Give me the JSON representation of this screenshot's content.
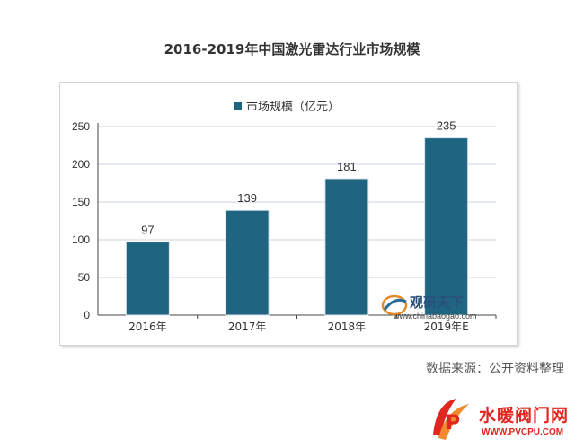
{
  "chart_data": {
    "type": "bar",
    "title": "2016-2019年中国激光雷达行业市场规模",
    "categories": [
      "2016年",
      "2017年",
      "2018年",
      "2019年E"
    ],
    "series": [
      {
        "name": "市场规模（亿元）",
        "values": [
          97,
          139,
          181,
          235
        ]
      }
    ],
    "ylim": [
      0,
      250
    ],
    "yticks": [
      0,
      50,
      100,
      150,
      200,
      250
    ],
    "grid": true,
    "legend": "top-left",
    "colors": {
      "bar": "#1f6582",
      "grid": "#c9d6e0"
    }
  },
  "watermarks": {
    "chart_logo_text": "观研天下",
    "chart_logo_url": "www.chinabaogao.com",
    "site_name": "水暖阀门网",
    "site_url": "WWW.PVCPU.COM"
  },
  "source": "数据来源：公开资料整理"
}
